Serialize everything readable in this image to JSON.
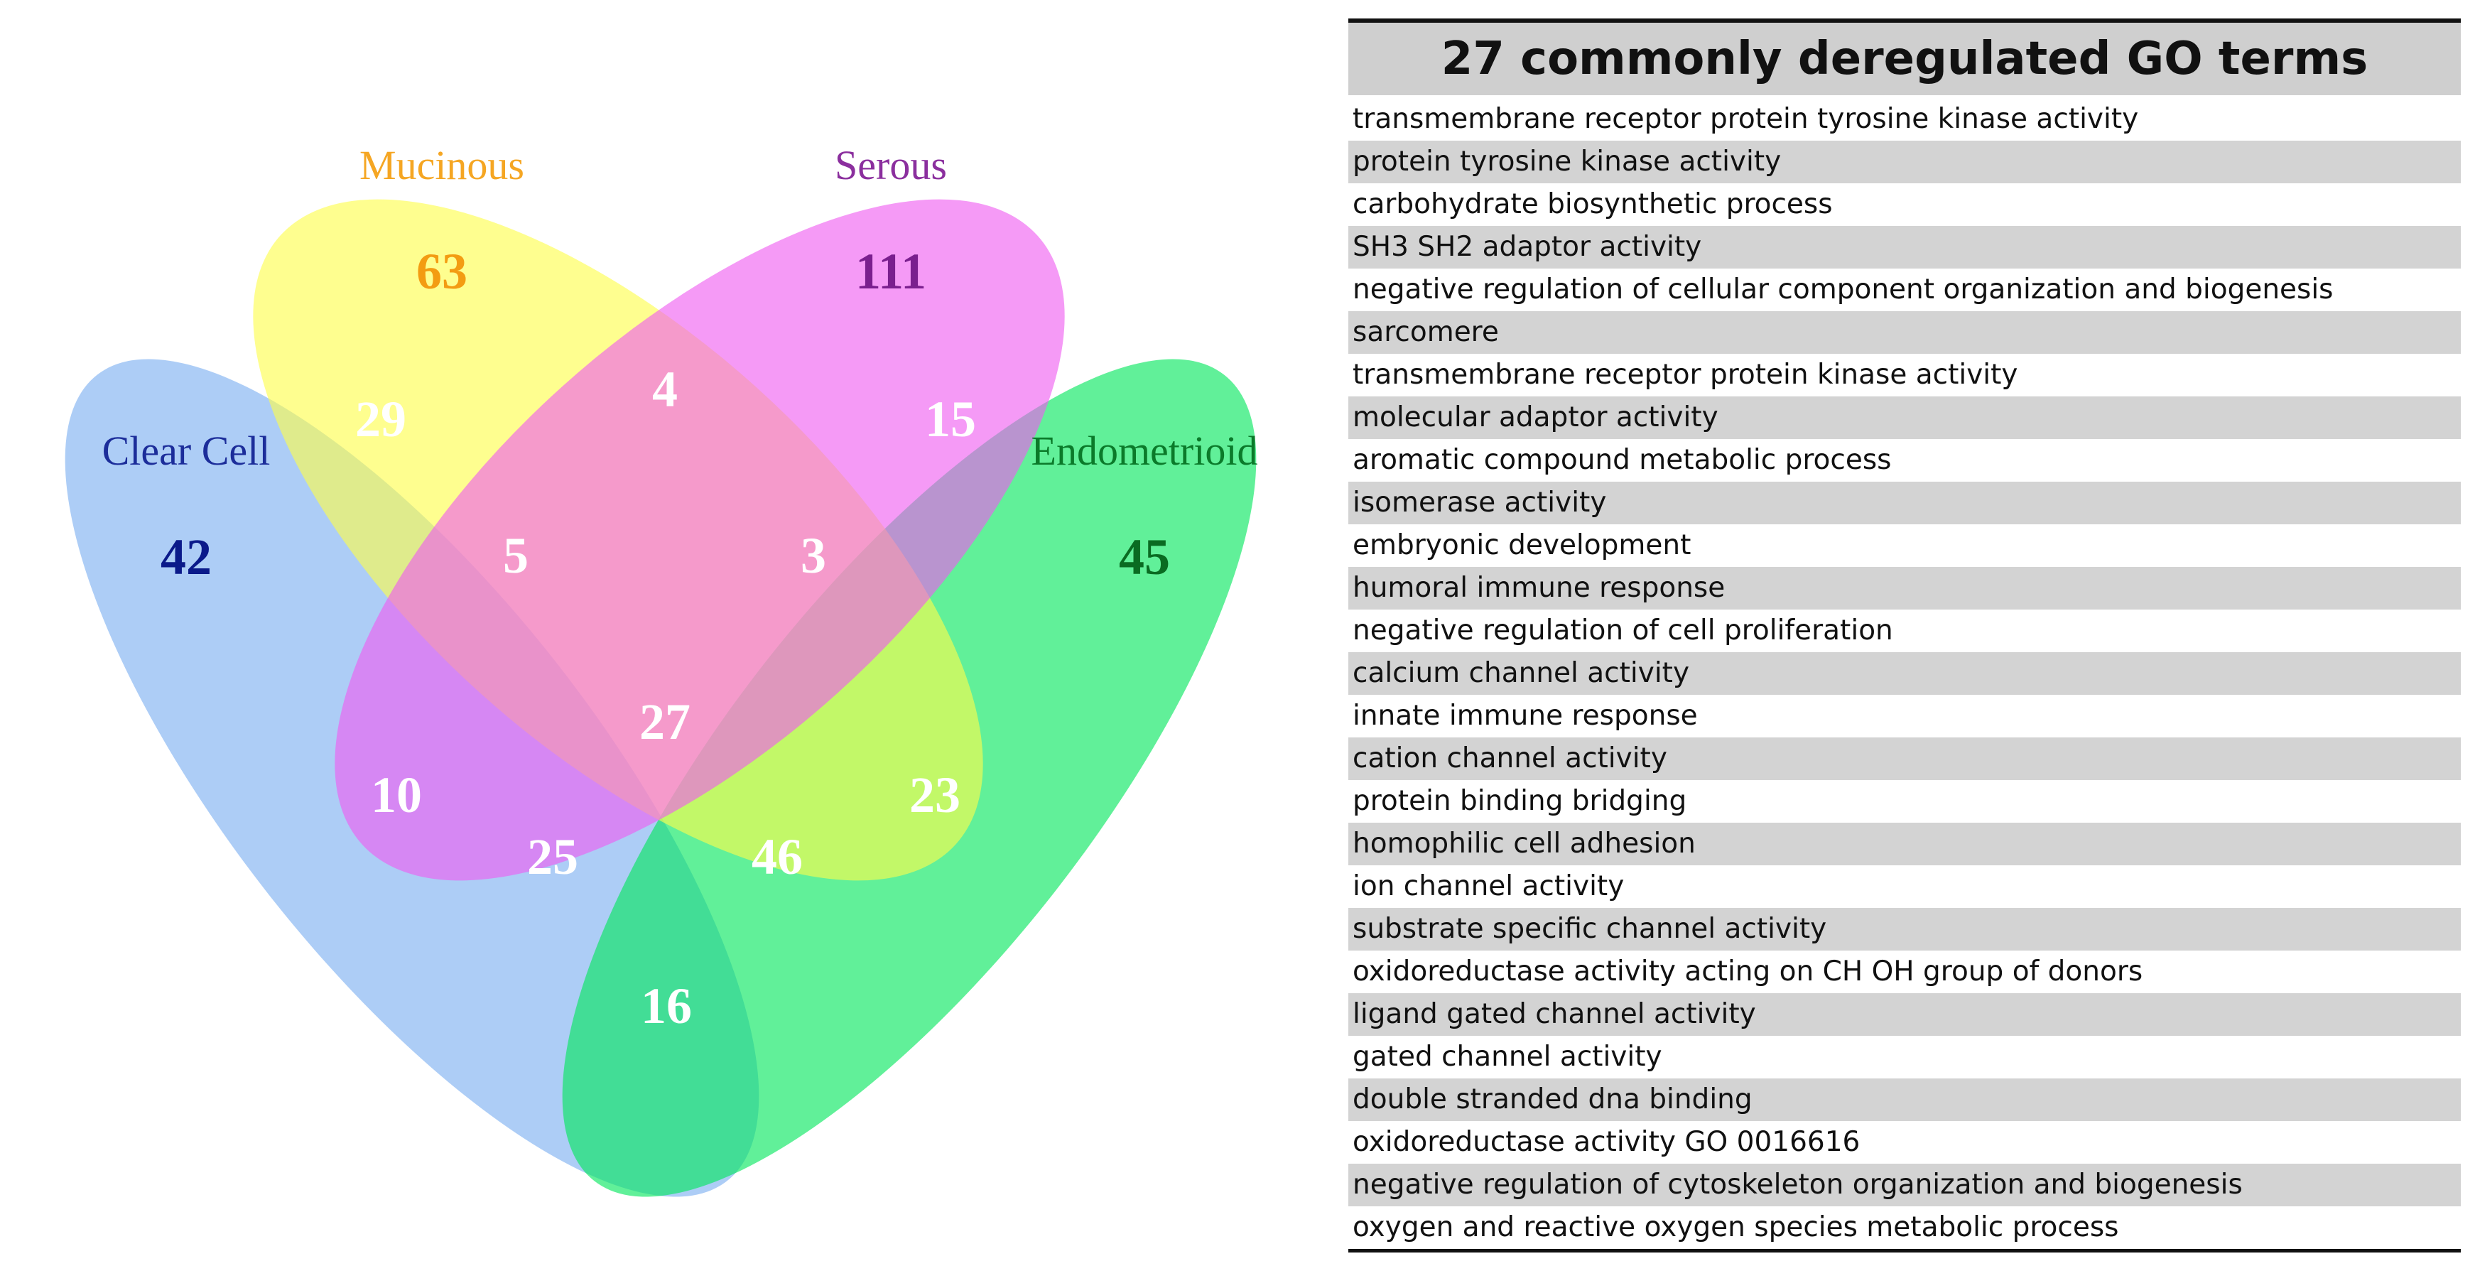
{
  "venn": {
    "sets": [
      {
        "key": "clear_cell",
        "label": "Clear Cell",
        "only_count": "42",
        "fill": "#7aaef0",
        "label_color": "#1c2d9a",
        "count_color": "#0b1a8a"
      },
      {
        "key": "mucinous",
        "label": "Mucinous",
        "only_count": "63",
        "fill": "#fdfd4a",
        "label_color": "#f5a623",
        "count_color": "#f39c12"
      },
      {
        "key": "serous",
        "label": "Serous",
        "only_count": "111",
        "fill": "#ef5cf0",
        "label_color": "#8b2f9e",
        "count_color": "#7a1f8e"
      },
      {
        "key": "endometrioid",
        "label": "Endometrioid",
        "only_count": "45",
        "fill": "#00e65a",
        "label_color": "#0b7a2a",
        "count_color": "#0a6b22"
      }
    ],
    "regions": {
      "clear_mucinous": "29",
      "mucinous_serous": "4",
      "serous_endometrioid": "15",
      "clear_mucinous_serous": "5",
      "mucinous_serous_endometrioid": "3",
      "all_four": "27",
      "clear_serous": "10",
      "mucinous_endometrioid": "23",
      "clear_serous_endometrioid": "25",
      "clear_mucinous_endometrioid": "46",
      "clear_endometrioid": "16"
    }
  },
  "go_table": {
    "title": "27 commonly deregulated GO terms",
    "terms": [
      "transmembrane receptor protein tyrosine kinase activity",
      "protein tyrosine kinase activity",
      "carbohydrate biosynthetic process",
      "SH3 SH2 adaptor activity",
      "negative regulation of cellular component organization and biogenesis",
      "sarcomere",
      "transmembrane receptor protein kinase activity",
      "molecular adaptor activity",
      "aromatic compound metabolic process",
      "isomerase activity",
      "embryonic development",
      "humoral immune response",
      "negative regulation of cell proliferation",
      "calcium channel activity",
      "innate immune response",
      "cation channel activity",
      "protein binding bridging",
      "homophilic cell adhesion",
      "ion channel activity",
      "substrate specific channel activity",
      "oxidoreductase activity acting on CH OH group of donors",
      "ligand gated channel activity",
      "gated channel activity",
      "double stranded dna binding",
      "oxidoreductase activity GO 0016616",
      "negative regulation of cytoskeleton organization and biogenesis",
      "oxygen and reactive oxygen species metabolic process"
    ]
  }
}
